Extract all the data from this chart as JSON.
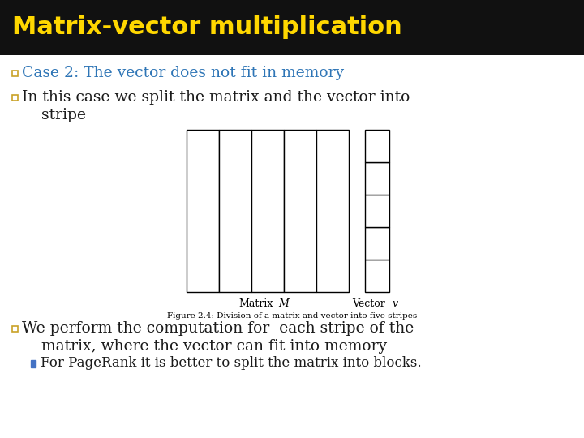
{
  "title": "Matrix-vector multiplication",
  "title_color": "#FFD700",
  "title_bg_color": "#111111",
  "slide_bg_color": "#FFFFFF",
  "bullet1": "Case 2: The vector does not fit in memory",
  "bullet1_color": "#2E75B6",
  "bullet2_line1": "In this case we split the matrix and the vector into",
  "bullet2_line2": "    stripe",
  "bullet2_color": "#1a1a1a",
  "bullet3_line1": "We perform the computation for  each stripe of the",
  "bullet3_line2": "    matrix, where the vector can fit into memory",
  "bullet3_color": "#1a1a1a",
  "sub_bullet": "For PageRank it is better to split the matrix into blocks.",
  "sub_bullet_color": "#1a1a1a",
  "sub_bullet_marker_color": "#4472C4",
  "bullet_square_color": "#C9A227",
  "figure_caption": "Figure 2.4: Division of a matrix and vector into five stripes",
  "matrix_label": "Matrix",
  "matrix_M_label": "M",
  "vector_label": "Vector",
  "vector_v_label": "v",
  "title_bar_height": 68,
  "title_fontsize": 22,
  "bullet_fontsize": 13.5,
  "sub_bullet_fontsize": 12
}
